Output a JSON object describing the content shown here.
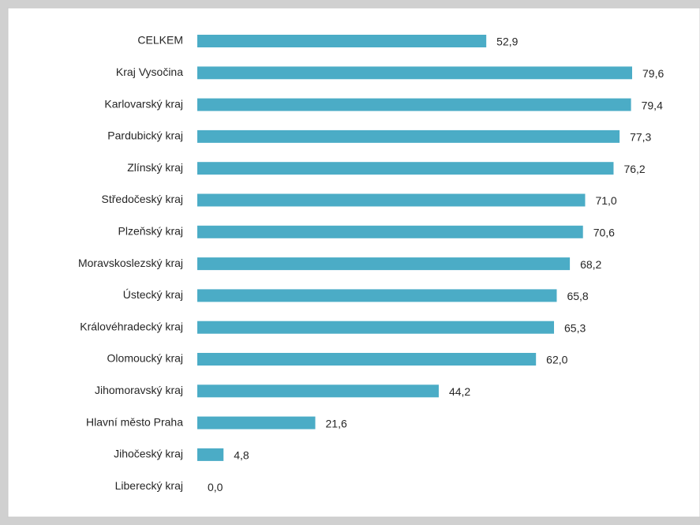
{
  "chart_data": {
    "type": "bar",
    "orientation": "horizontal",
    "color": "#4bacc6",
    "categories": [
      "CELKEM",
      "Kraj Vysočina",
      "Karlovarský kraj",
      "Pardubický kraj",
      "Zlínský kraj",
      "Středočeský kraj",
      "Plzeňský kraj",
      "Moravskoslezský kraj",
      "Ústecký kraj",
      "Královéhradecký kraj",
      "Olomoucký kraj",
      "Jihomoravský kraj",
      "Hlavní město Praha",
      "Jihočeský kraj",
      "Liberecký kraj"
    ],
    "values": [
      52.9,
      79.6,
      79.4,
      77.3,
      76.2,
      71.0,
      70.6,
      68.2,
      65.8,
      65.3,
      62.0,
      44.2,
      21.6,
      4.8,
      0.0
    ],
    "value_labels": [
      "52,9",
      "79,6",
      "79,4",
      "77,3",
      "76,2",
      "71,0",
      "70,6",
      "68,2",
      "65,8",
      "65,3",
      "62,0",
      "44,2",
      "21,6",
      "4,8",
      "0,0"
    ]
  }
}
